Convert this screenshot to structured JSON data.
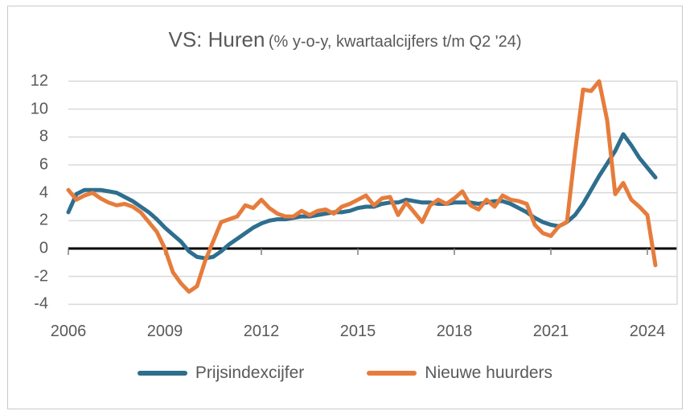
{
  "figure": {
    "title_main": "VS: Huren",
    "title_sub": "(% y-o-y, kwartaalcijfers t/m Q2 '24)"
  },
  "chart_data": {
    "type": "line",
    "title": "VS: Huren (% y-o-y, kwartaalcijfers t/m Q2 '24)",
    "x_unit": "quarter",
    "x_start": "2006 Q1",
    "x_end": "2024 Q2",
    "x_tick_labels": [
      "2006",
      "2009",
      "2012",
      "2015",
      "2018",
      "2021",
      "2024"
    ],
    "y_tick_labels": [
      "12",
      "10",
      "8",
      "6",
      "4",
      "2",
      "0",
      "-2",
      "-4"
    ],
    "y_ticks": [
      12,
      10,
      8,
      6,
      4,
      2,
      0,
      -2,
      -4
    ],
    "ylim": [
      -4,
      12
    ],
    "grid": "horizontal",
    "zero_axis": true,
    "legend_position": "bottom",
    "series": [
      {
        "name": "Prijsindexcijfer",
        "color": "#2E6E8E",
        "values": [
          2.6,
          3.9,
          4.2,
          4.2,
          4.2,
          4.1,
          4.0,
          3.7,
          3.4,
          3.0,
          2.6,
          2.1,
          1.5,
          1.0,
          0.5,
          -0.2,
          -0.6,
          -0.7,
          -0.6,
          -0.2,
          0.3,
          0.7,
          1.1,
          1.5,
          1.8,
          2.0,
          2.1,
          2.1,
          2.2,
          2.3,
          2.3,
          2.4,
          2.5,
          2.6,
          2.6,
          2.7,
          2.9,
          3.0,
          3.0,
          3.2,
          3.3,
          3.3,
          3.5,
          3.4,
          3.3,
          3.3,
          3.2,
          3.2,
          3.3,
          3.3,
          3.3,
          3.2,
          3.3,
          3.4,
          3.4,
          3.2,
          2.9,
          2.6,
          2.2,
          1.9,
          1.7,
          1.6,
          1.9,
          2.4,
          3.2,
          4.2,
          5.2,
          6.1,
          7.0,
          8.2,
          7.4,
          6.5,
          5.8,
          5.1
        ]
      },
      {
        "name": "Nieuwe huurders",
        "color": "#E67C3C",
        "values": [
          4.2,
          3.5,
          3.8,
          4.0,
          3.6,
          3.3,
          3.1,
          3.2,
          3.0,
          2.6,
          1.9,
          1.2,
          0.0,
          -1.7,
          -2.5,
          -3.1,
          -2.7,
          -0.9,
          0.5,
          1.9,
          2.1,
          2.3,
          3.1,
          2.9,
          3.5,
          2.9,
          2.5,
          2.3,
          2.3,
          2.7,
          2.4,
          2.7,
          2.8,
          2.5,
          3.0,
          3.2,
          3.5,
          3.8,
          3.1,
          3.6,
          3.7,
          2.4,
          3.3,
          2.6,
          1.9,
          3.1,
          3.5,
          3.2,
          3.6,
          4.1,
          3.1,
          2.8,
          3.5,
          3.0,
          3.8,
          3.5,
          3.4,
          3.2,
          1.7,
          1.1,
          0.9,
          1.6,
          1.9,
          6.9,
          11.4,
          11.3,
          12.0,
          9.2,
          3.9,
          4.7,
          3.5,
          3.0,
          2.4,
          -1.2
        ]
      }
    ]
  },
  "colors": {
    "text": "#595959",
    "gridline": "#d9d9d9",
    "zero_axis": "#000000",
    "border": "#c9c9c9",
    "series_blue": "#2E6E8E",
    "series_orange": "#E67C3C"
  }
}
